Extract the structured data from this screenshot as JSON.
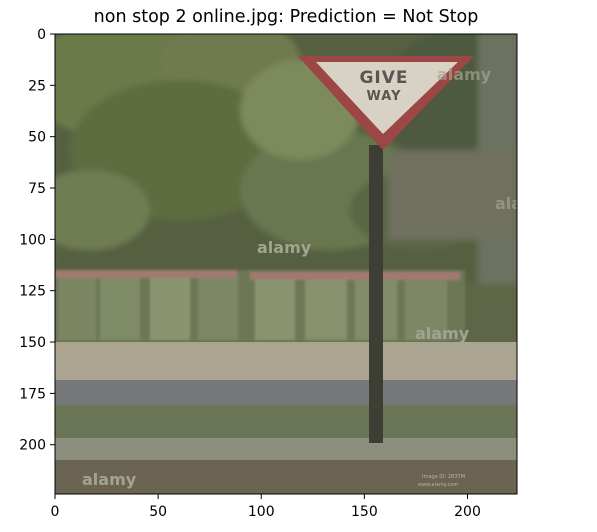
{
  "chart_data": {
    "type": "image",
    "title": "non stop 2 online.jpg: Prediction = Not Stop",
    "xlabel": "",
    "ylabel": "",
    "xlim": [
      0,
      224
    ],
    "ylim": [
      224,
      0
    ],
    "xticks": [
      0,
      50,
      100,
      150,
      200
    ],
    "yticks": [
      0,
      25,
      50,
      75,
      100,
      125,
      150,
      175,
      200
    ],
    "sign": {
      "line1": "GIVE",
      "line2": "WAY"
    },
    "watermarks": [
      "alamy",
      "alamy",
      "alamy",
      "alamy",
      "alamy"
    ],
    "credit": [
      "Image ID: 2B3TM",
      "www.alamy.com"
    ]
  }
}
